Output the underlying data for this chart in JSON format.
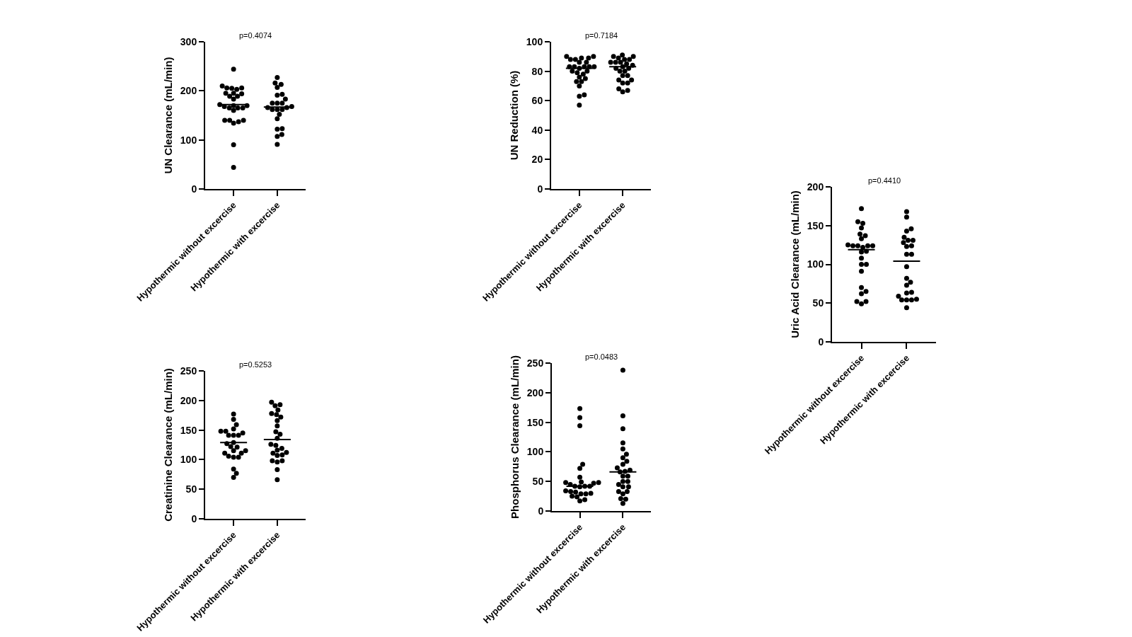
{
  "chart_data": [
    {
      "type": "scatter",
      "ylabel": "UN Clearance (mL/min)",
      "categories": [
        "Hypothermic without excercise",
        "Hypothermic with excercise"
      ],
      "ylim": [
        0,
        300
      ],
      "yticks": [
        0,
        100,
        200,
        300
      ],
      "marker": "circle",
      "annotations": [
        "p=0.4074"
      ],
      "ref_lines": [
        {
          "axis": "y",
          "value": 172,
          "color": "#000000"
        },
        {
          "axis": "y",
          "value": 167,
          "color": "#000000"
        }
      ],
      "series": [
        {
          "color": "#000000",
          "x": [
            "Hypothermic without excercise",
            "Hypothermic without excercise",
            "Hypothermic without excercise",
            "Hypothermic without excercise",
            "Hypothermic without excercise",
            "Hypothermic without excercise",
            "Hypothermic without excercise",
            "Hypothermic without excercise",
            "Hypothermic without excercise",
            "Hypothermic without excercise",
            "Hypothermic without excercise",
            "Hypothermic without excercise",
            "Hypothermic without excercise",
            "Hypothermic without excercise",
            "Hypothermic without excercise",
            "Hypothermic without excercise",
            "Hypothermic without excercise",
            "Hypothermic without excercise",
            "Hypothermic without excercise",
            "Hypothermic without excercise",
            "Hypothermic without excercise",
            "Hypothermic without excercise",
            "Hypothermic without excercise",
            "Hypothermic without excercise",
            "Hypothermic without excercise",
            "Hypothermic without excercise",
            "Hypothermic without excercise"
          ],
          "values": [
            244,
            210,
            206,
            205,
            203,
            206,
            195,
            189,
            195,
            189,
            194,
            183,
            172,
            170,
            170,
            168,
            165,
            165,
            165,
            160,
            140,
            137,
            134,
            140,
            140,
            90,
            44
          ]
        },
        {
          "color": "#000000",
          "x": [
            "Hypothermic with excercise",
            "Hypothermic with excercise",
            "Hypothermic with excercise",
            "Hypothermic with excercise",
            "Hypothermic with excercise",
            "Hypothermic with excercise",
            "Hypothermic with excercise",
            "Hypothermic with excercise",
            "Hypothermic with excercise",
            "Hypothermic with excercise",
            "Hypothermic with excercise",
            "Hypothermic with excercise",
            "Hypothermic with excercise",
            "Hypothermic with excercise",
            "Hypothermic with excercise",
            "Hypothermic with excercise",
            "Hypothermic with excercise",
            "Hypothermic with excercise",
            "Hypothermic with excercise",
            "Hypothermic with excercise",
            "Hypothermic with excercise",
            "Hypothermic with excercise",
            "Hypothermic with excercise"
          ],
          "values": [
            227,
            216,
            213,
            207,
            193,
            191,
            183,
            175,
            175,
            175,
            168,
            166,
            162,
            166,
            162,
            162,
            152,
            143,
            123,
            122,
            111,
            107,
            91
          ]
        }
      ]
    },
    {
      "type": "scatter",
      "ylabel": "UN Reduction (%)",
      "categories": [
        "Hypothermic without excercise",
        "Hypothermic with excercise"
      ],
      "ylim": [
        0,
        100
      ],
      "yticks": [
        0,
        20,
        40,
        60,
        80,
        100
      ],
      "marker": "circle",
      "annotations": [
        "p=0.7184"
      ],
      "ref_lines": [
        {
          "axis": "y",
          "value": 82,
          "color": "#000000"
        },
        {
          "axis": "y",
          "value": 83,
          "color": "#000000"
        }
      ],
      "series": [
        {
          "color": "#000000",
          "x": [
            "Hypothermic without excercise",
            "Hypothermic without excercise",
            "Hypothermic without excercise",
            "Hypothermic without excercise",
            "Hypothermic without excercise",
            "Hypothermic without excercise",
            "Hypothermic without excercise",
            "Hypothermic without excercise",
            "Hypothermic without excercise",
            "Hypothermic without excercise",
            "Hypothermic without excercise",
            "Hypothermic without excercise",
            "Hypothermic without excercise",
            "Hypothermic without excercise",
            "Hypothermic without excercise",
            "Hypothermic without excercise",
            "Hypothermic without excercise",
            "Hypothermic without excercise",
            "Hypothermic without excercise",
            "Hypothermic without excercise",
            "Hypothermic without excercise",
            "Hypothermic without excercise",
            "Hypothermic without excercise",
            "Hypothermic without excercise",
            "Hypothermic without excercise",
            "Hypothermic without excercise"
          ],
          "values": [
            90,
            89,
            88,
            88,
            89,
            90,
            86,
            86,
            83,
            83,
            83,
            83,
            83,
            82,
            79,
            80,
            80,
            78,
            75,
            76,
            73,
            73,
            70,
            64,
            63,
            57
          ]
        },
        {
          "color": "#000000",
          "x": [
            "Hypothermic with excercise",
            "Hypothermic with excercise",
            "Hypothermic with excercise",
            "Hypothermic with excercise",
            "Hypothermic with excercise",
            "Hypothermic with excercise",
            "Hypothermic with excercise",
            "Hypothermic with excercise",
            "Hypothermic with excercise",
            "Hypothermic with excercise",
            "Hypothermic with excercise",
            "Hypothermic with excercise",
            "Hypothermic with excercise",
            "Hypothermic with excercise",
            "Hypothermic with excercise",
            "Hypothermic with excercise",
            "Hypothermic with excercise",
            "Hypothermic with excercise",
            "Hypothermic with excercise",
            "Hypothermic with excercise",
            "Hypothermic with excercise",
            "Hypothermic with excercise",
            "Hypothermic with excercise",
            "Hypothermic with excercise",
            "Hypothermic with excercise"
          ],
          "values": [
            91,
            90,
            90,
            89,
            88,
            88,
            86,
            86,
            86,
            85,
            84,
            83,
            82,
            82,
            80,
            80,
            77,
            77,
            74,
            74,
            72,
            72,
            68,
            67,
            66
          ]
        }
      ]
    },
    {
      "type": "scatter",
      "ylabel": "Uric Acid Clearance (mL/min)",
      "categories": [
        "Hypothermic without excercise",
        "Hypothermic with excercise"
      ],
      "ylim": [
        0,
        200
      ],
      "yticks": [
        0,
        50,
        100,
        150,
        200
      ],
      "marker": "circle",
      "annotations": [
        "p=0.4410"
      ],
      "ref_lines": [
        {
          "axis": "y",
          "value": 119,
          "color": "#000000"
        },
        {
          "axis": "y",
          "value": 104,
          "color": "#000000"
        }
      ],
      "series": [
        {
          "color": "#000000",
          "x": [
            "Hypothermic without excercise",
            "Hypothermic without excercise",
            "Hypothermic without excercise",
            "Hypothermic without excercise",
            "Hypothermic without excercise",
            "Hypothermic without excercise",
            "Hypothermic without excercise",
            "Hypothermic without excercise",
            "Hypothermic without excercise",
            "Hypothermic without excercise",
            "Hypothermic without excercise",
            "Hypothermic without excercise",
            "Hypothermic without excercise",
            "Hypothermic without excercise",
            "Hypothermic without excercise",
            "Hypothermic without excercise",
            "Hypothermic without excercise",
            "Hypothermic without excercise",
            "Hypothermic without excercise",
            "Hypothermic without excercise",
            "Hypothermic without excercise",
            "Hypothermic without excercise",
            "Hypothermic without excercise",
            "Hypothermic without excercise",
            "Hypothermic without excercise"
          ],
          "values": [
            172,
            155,
            153,
            147,
            139,
            137,
            133,
            125,
            124,
            124,
            124,
            124,
            122,
            117,
            116,
            108,
            100,
            100,
            91,
            70,
            65,
            62,
            52,
            52,
            49
          ]
        },
        {
          "color": "#000000",
          "x": [
            "Hypothermic with excercise",
            "Hypothermic with excercise",
            "Hypothermic with excercise",
            "Hypothermic with excercise",
            "Hypothermic with excercise",
            "Hypothermic with excercise",
            "Hypothermic with excercise",
            "Hypothermic with excercise",
            "Hypothermic with excercise",
            "Hypothermic with excercise",
            "Hypothermic with excercise",
            "Hypothermic with excercise",
            "Hypothermic with excercise",
            "Hypothermic with excercise",
            "Hypothermic with excercise",
            "Hypothermic with excercise",
            "Hypothermic with excercise",
            "Hypothermic with excercise",
            "Hypothermic with excercise",
            "Hypothermic with excercise",
            "Hypothermic with excercise",
            "Hypothermic with excercise",
            "Hypothermic with excercise",
            "Hypothermic with excercise"
          ],
          "values": [
            168,
            161,
            146,
            143,
            135,
            131,
            131,
            128,
            124,
            123,
            113,
            113,
            97,
            82,
            77,
            73,
            64,
            63,
            59,
            55,
            54,
            54,
            54,
            44
          ]
        }
      ]
    },
    {
      "type": "scatter",
      "ylabel": "Creatinine Clearance (mL/min)",
      "categories": [
        "Hypothermic without excercise",
        "Hypothermic with excercise"
      ],
      "ylim": [
        0,
        250
      ],
      "yticks": [
        0,
        50,
        100,
        150,
        200,
        250
      ],
      "marker": "circle",
      "annotations": [
        "p=0.5253"
      ],
      "ref_lines": [
        {
          "axis": "y",
          "value": 129,
          "color": "#000000"
        },
        {
          "axis": "y",
          "value": 134,
          "color": "#000000"
        }
      ],
      "series": [
        {
          "color": "#000000",
          "x": [
            "Hypothermic without excercise",
            "Hypothermic without excercise",
            "Hypothermic without excercise",
            "Hypothermic without excercise",
            "Hypothermic without excercise",
            "Hypothermic without excercise",
            "Hypothermic without excercise",
            "Hypothermic without excercise",
            "Hypothermic without excercise",
            "Hypothermic without excercise",
            "Hypothermic without excercise",
            "Hypothermic without excercise",
            "Hypothermic without excercise",
            "Hypothermic without excercise",
            "Hypothermic without excercise",
            "Hypothermic without excercise",
            "Hypothermic without excercise",
            "Hypothermic without excercise",
            "Hypothermic without excercise",
            "Hypothermic without excercise",
            "Hypothermic without excercise",
            "Hypothermic without excercise",
            "Hypothermic without excercise",
            "Hypothermic without excercise"
          ],
          "values": [
            177,
            168,
            159,
            152,
            148,
            148,
            145,
            141,
            141,
            141,
            129,
            127,
            122,
            121,
            115,
            115,
            111,
            111,
            106,
            104,
            104,
            84,
            77,
            70
          ]
        },
        {
          "color": "#000000",
          "x": [
            "Hypothermic with excercise",
            "Hypothermic with excercise",
            "Hypothermic with excercise",
            "Hypothermic with excercise",
            "Hypothermic with excercise",
            "Hypothermic with excercise",
            "Hypothermic with excercise",
            "Hypothermic with excercise",
            "Hypothermic with excercise",
            "Hypothermic with excercise",
            "Hypothermic with excercise",
            "Hypothermic with excercise",
            "Hypothermic with excercise",
            "Hypothermic with excercise",
            "Hypothermic with excercise",
            "Hypothermic with excercise",
            "Hypothermic with excercise",
            "Hypothermic with excercise",
            "Hypothermic with excercise",
            "Hypothermic with excercise",
            "Hypothermic with excercise",
            "Hypothermic with excercise",
            "Hypothermic with excercise",
            "Hypothermic with excercise",
            "Hypothermic with excercise"
          ],
          "values": [
            197,
            193,
            191,
            184,
            178,
            176,
            172,
            166,
            157,
            147,
            143,
            136,
            126,
            124,
            119,
            116,
            112,
            111,
            108,
            107,
            98,
            98,
            96,
            83,
            66
          ]
        }
      ]
    },
    {
      "type": "scatter",
      "ylabel": "Phosphorus Clearance (mL/min)",
      "categories": [
        "Hypothermic without excercise",
        "Hypothermic with excercise"
      ],
      "ylim": [
        0,
        250
      ],
      "yticks": [
        0,
        50,
        100,
        150,
        200,
        250
      ],
      "marker": "circle",
      "annotations": [
        "p=0.0483"
      ],
      "ref_lines": [
        {
          "axis": "y",
          "value": 42,
          "color": "#000000"
        },
        {
          "axis": "y",
          "value": 66,
          "color": "#000000"
        }
      ],
      "series": [
        {
          "color": "#000000",
          "x": [
            "Hypothermic without excercise",
            "Hypothermic without excercise",
            "Hypothermic without excercise",
            "Hypothermic without excercise",
            "Hypothermic without excercise",
            "Hypothermic without excercise",
            "Hypothermic without excercise",
            "Hypothermic without excercise",
            "Hypothermic without excercise",
            "Hypothermic without excercise",
            "Hypothermic without excercise",
            "Hypothermic without excercise",
            "Hypothermic without excercise",
            "Hypothermic without excercise",
            "Hypothermic without excercise",
            "Hypothermic without excercise",
            "Hypothermic without excercise",
            "Hypothermic without excercise",
            "Hypothermic without excercise",
            "Hypothermic without excercise",
            "Hypothermic without excercise",
            "Hypothermic without excercise",
            "Hypothermic without excercise",
            "Hypothermic without excercise",
            "Hypothermic without excercise"
          ],
          "values": [
            173,
            158,
            144,
            79,
            72,
            57,
            49,
            48,
            48,
            47,
            45,
            42,
            42,
            42,
            41,
            34,
            33,
            32,
            30,
            29,
            29,
            25,
            24,
            19,
            17
          ]
        },
        {
          "color": "#000000",
          "x": [
            "Hypothermic with excercise",
            "Hypothermic with excercise",
            "Hypothermic with excercise",
            "Hypothermic with excercise",
            "Hypothermic with excercise",
            "Hypothermic with excercise",
            "Hypothermic with excercise",
            "Hypothermic with excercise",
            "Hypothermic with excercise",
            "Hypothermic with excercise",
            "Hypothermic with excercise",
            "Hypothermic with excercise",
            "Hypothermic with excercise",
            "Hypothermic with excercise",
            "Hypothermic with excercise",
            "Hypothermic with excercise",
            "Hypothermic with excercise",
            "Hypothermic with excercise",
            "Hypothermic with excercise",
            "Hypothermic with excercise",
            "Hypothermic with excercise",
            "Hypothermic with excercise",
            "Hypothermic with excercise",
            "Hypothermic with excercise",
            "Hypothermic with excercise",
            "Hypothermic with excercise"
          ],
          "values": [
            238,
            161,
            139,
            115,
            105,
            96,
            90,
            84,
            79,
            73,
            69,
            67,
            66,
            59,
            59,
            50,
            50,
            45,
            41,
            41,
            33,
            33,
            29,
            21,
            20,
            13
          ]
        }
      ]
    }
  ]
}
